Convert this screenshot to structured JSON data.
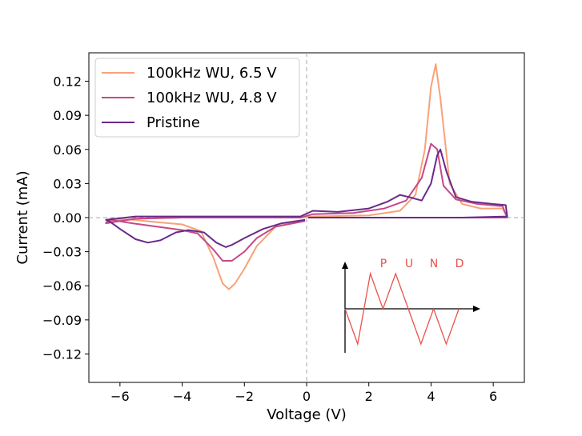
{
  "chart_data": {
    "type": "line",
    "xlabel": "Voltage (V)",
    "ylabel": "Current (mA)",
    "xlim": [
      -7.0,
      7.0
    ],
    "ylim": [
      -0.145,
      0.145
    ],
    "xticks": [
      -6,
      -4,
      -2,
      0,
      2,
      4,
      6
    ],
    "xtick_labels": [
      "−6",
      "−4",
      "−2",
      "0",
      "2",
      "4",
      "6"
    ],
    "yticks": [
      -0.12,
      -0.09,
      -0.06,
      -0.03,
      0.0,
      0.03,
      0.06,
      0.09,
      0.12
    ],
    "ytick_labels": [
      "−0.12",
      "−0.09",
      "−0.06",
      "−0.03",
      "0.00",
      "0.03",
      "0.06",
      "0.09",
      "0.12"
    ],
    "reference_lines": {
      "x": 0,
      "y": 0,
      "style": "dashed",
      "color": "#aaaaaa"
    },
    "legend_position": "upper-left",
    "series": [
      {
        "name": "100kHz WU, 6.5 V",
        "color": "#f7a278",
        "x": [
          -0.05,
          -1.0,
          -1.6,
          -2.0,
          -2.3,
          -2.5,
          -2.7,
          -3.0,
          -3.4,
          -4.0,
          -4.8,
          -5.6,
          -6.3,
          -6.45,
          -5.5,
          -4.0,
          -2.0,
          -0.2,
          0.2,
          2.0,
          3.0,
          3.5,
          3.8,
          4.0,
          4.15,
          4.3,
          4.6,
          5.0,
          5.6,
          6.3,
          6.45,
          5.0,
          3.0,
          1.0,
          0.05
        ],
        "y": [
          -0.002,
          -0.008,
          -0.025,
          -0.045,
          -0.058,
          -0.063,
          -0.058,
          -0.035,
          -0.012,
          -0.006,
          -0.004,
          -0.002,
          -0.001,
          -0.004,
          -0.001,
          0.0,
          0.0,
          0.0,
          0.001,
          0.002,
          0.006,
          0.02,
          0.06,
          0.115,
          0.135,
          0.105,
          0.03,
          0.012,
          0.008,
          0.008,
          0.0,
          0.0,
          0.0,
          0.0,
          0.0
        ]
      },
      {
        "name": "100kHz WU, 4.8 V",
        "color": "#c44a87",
        "x": [
          -0.05,
          -1.0,
          -1.6,
          -2.0,
          -2.4,
          -2.7,
          -3.0,
          -3.5,
          -4.0,
          -4.8,
          -5.6,
          -6.3,
          -6.45,
          -5.5,
          -4.0,
          -2.0,
          -0.2,
          0.2,
          1.5,
          2.5,
          3.2,
          3.7,
          4.0,
          4.2,
          4.4,
          4.8,
          5.5,
          6.3,
          6.45,
          5.0,
          3.0,
          1.0,
          0.05
        ],
        "y": [
          -0.003,
          -0.008,
          -0.018,
          -0.03,
          -0.038,
          -0.038,
          -0.028,
          -0.014,
          -0.011,
          -0.008,
          -0.005,
          -0.002,
          -0.005,
          -0.001,
          0.0,
          0.0,
          0.0,
          0.003,
          0.004,
          0.008,
          0.015,
          0.035,
          0.065,
          0.06,
          0.028,
          0.016,
          0.012,
          0.01,
          0.0,
          0.0,
          0.0,
          0.0,
          0.0
        ]
      },
      {
        "name": "Pristine",
        "color": "#6a2a8a",
        "x": [
          -0.05,
          -0.8,
          -1.4,
          -2.0,
          -2.4,
          -2.6,
          -2.9,
          -3.3,
          -3.8,
          -4.2,
          -4.7,
          -5.1,
          -5.5,
          -6.0,
          -6.3,
          -6.45,
          -5.5,
          -4.0,
          -2.0,
          -0.2,
          0.2,
          1.0,
          2.0,
          2.6,
          3.0,
          3.3,
          3.7,
          4.0,
          4.2,
          4.3,
          4.5,
          4.8,
          5.3,
          6.0,
          6.4,
          6.45,
          5.0,
          3.0,
          1.0,
          0.05
        ],
        "y": [
          -0.002,
          -0.005,
          -0.01,
          -0.018,
          -0.024,
          -0.026,
          -0.022,
          -0.013,
          -0.011,
          -0.013,
          -0.02,
          -0.022,
          -0.019,
          -0.01,
          -0.004,
          -0.002,
          0.001,
          0.001,
          0.001,
          0.001,
          0.006,
          0.005,
          0.008,
          0.014,
          0.02,
          0.018,
          0.015,
          0.03,
          0.055,
          0.06,
          0.04,
          0.018,
          0.014,
          0.012,
          0.011,
          0.001,
          0.0,
          0.0,
          0.0,
          0.0
        ]
      }
    ],
    "inset": {
      "description": "PUND waveform schematic",
      "labels": [
        "P",
        "U",
        "N",
        "D"
      ],
      "label_color": "#e8524a",
      "waveform_color": "#e8524a",
      "waveform": [
        0,
        -1,
        1,
        0,
        1,
        0,
        -1,
        0,
        -1,
        0
      ]
    }
  }
}
